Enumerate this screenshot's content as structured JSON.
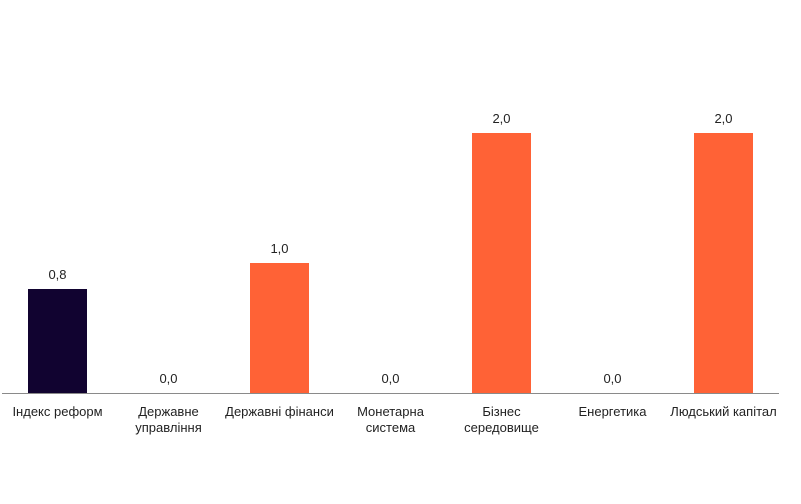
{
  "chart_data": {
    "type": "bar",
    "categories": [
      [
        "Індекс реформ"
      ],
      [
        "Державне",
        "управління"
      ],
      [
        "Державні фінанси"
      ],
      [
        "Монетарна",
        "система"
      ],
      [
        "Бізнес",
        "середовище"
      ],
      [
        "Енергетика"
      ],
      [
        "Людський капітал"
      ]
    ],
    "values": [
      0.8,
      0.0,
      1.0,
      0.0,
      2.0,
      0.0,
      2.0
    ],
    "value_labels": [
      "0,8",
      "0,0",
      "1,0",
      "0,0",
      "2,0",
      "0,0",
      "2,0"
    ],
    "ylim": [
      0,
      2.4
    ],
    "grid": false,
    "colors": {
      "highlight": "#110330",
      "default": "#FF6236",
      "axis": "#8a8a8a"
    },
    "highlight_index": 0
  }
}
